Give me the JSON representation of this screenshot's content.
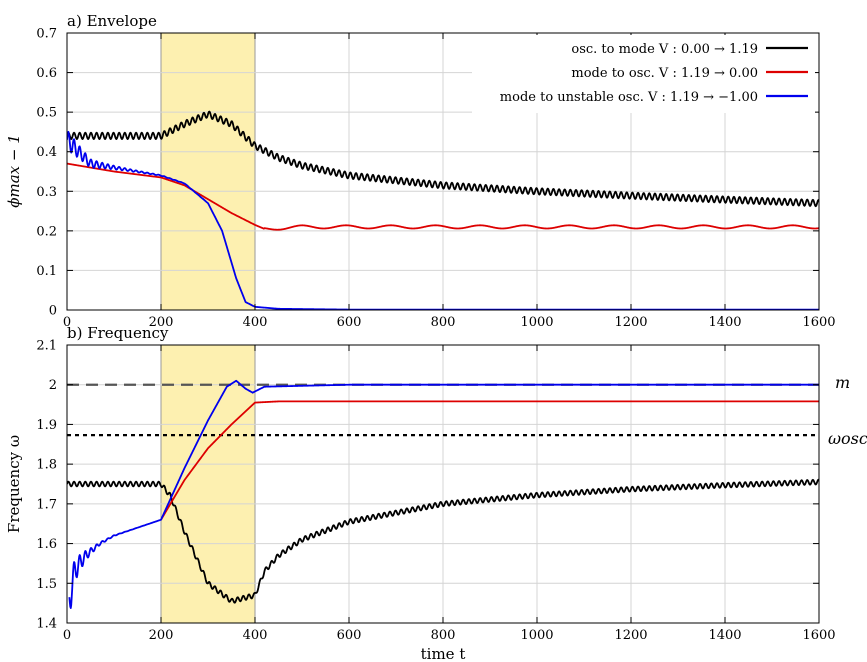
{
  "chart_data": [
    {
      "type": "line",
      "title": "a) Envelope",
      "xlabel": "",
      "ylabel": "ϕmax − 1",
      "xlim": [
        0,
        1600
      ],
      "ylim": [
        0,
        0.7
      ],
      "xticks": [
        "0",
        "200",
        "400",
        "600",
        "800",
        "1000",
        "1200",
        "1400",
        "1600"
      ],
      "yticks": [
        "0",
        "0.1",
        "0.2",
        "0.3",
        "0.4",
        "0.5",
        "0.6",
        "0.7"
      ],
      "grid": true,
      "legend_position": "top-right",
      "highlight_band": {
        "x0": 200,
        "x1": 400,
        "color": "#fdf0b0"
      },
      "series": [
        {
          "name": "osc. to mode V : 0.00 → 1.19",
          "color": "#000000",
          "oscillation": {
            "amplitude": 0.008,
            "period": 12
          },
          "x": [
            0,
            100,
            200,
            250,
            300,
            350,
            400,
            450,
            500,
            600,
            800,
            1000,
            1200,
            1400,
            1600
          ],
          "y": [
            0.44,
            0.44,
            0.44,
            0.47,
            0.495,
            0.47,
            0.415,
            0.385,
            0.365,
            0.34,
            0.315,
            0.3,
            0.289,
            0.279,
            0.27
          ]
        },
        {
          "name": "mode to osc. V : 1.19 → 0.00",
          "color": "#dd0000",
          "oscillation": {
            "amplitude": 0.004,
            "period": 95,
            "from": 420
          },
          "x": [
            0,
            100,
            200,
            250,
            300,
            350,
            400,
            420,
            500,
            800,
            1200,
            1600
          ],
          "y": [
            0.37,
            0.35,
            0.335,
            0.315,
            0.28,
            0.245,
            0.215,
            0.205,
            0.21,
            0.21,
            0.21,
            0.21
          ]
        },
        {
          "name": "mode to unstable osc. V : 1.19 → −1.00",
          "color": "#0000ee",
          "oscillation": {
            "amplitude": 0.025,
            "period": 12,
            "decay": 60
          },
          "x": [
            0,
            50,
            100,
            150,
            200,
            250,
            300,
            330,
            360,
            380,
            400,
            450,
            600,
            1600
          ],
          "y": [
            0.43,
            0.37,
            0.36,
            0.35,
            0.34,
            0.32,
            0.27,
            0.2,
            0.08,
            0.02,
            0.008,
            0.003,
            0.001,
            0.001
          ]
        }
      ]
    },
    {
      "type": "line",
      "title": "b) Frequency",
      "xlabel": "time t",
      "ylabel": "Frequency ω",
      "xlim": [
        0,
        1600
      ],
      "ylim": [
        1.4,
        2.1
      ],
      "xticks": [
        "0",
        "200",
        "400",
        "600",
        "800",
        "1000",
        "1200",
        "1400",
        "1600"
      ],
      "yticks": [
        "1.4",
        "1.5",
        "1.6",
        "1.7",
        "1.8",
        "1.9",
        "2",
        "2.1"
      ],
      "grid": true,
      "highlight_band": {
        "x0": 200,
        "x1": 400,
        "color": "#fdf0b0"
      },
      "reference_lines": [
        {
          "label": "m",
          "y": 2.0,
          "style": "dashed",
          "color": "#555555"
        },
        {
          "label": "ωosc",
          "y": 1.873,
          "style": "dotted",
          "color": "#000000"
        }
      ],
      "series": [
        {
          "name": "osc. to mode V : 0.00 → 1.19",
          "color": "#000000",
          "oscillation": {
            "amplitude": 0.006,
            "period": 12
          },
          "x": [
            0,
            100,
            200,
            220,
            250,
            300,
            350,
            400,
            420,
            450,
            500,
            600,
            800,
            1000,
            1200,
            1400,
            1600
          ],
          "y": [
            1.75,
            1.75,
            1.75,
            1.72,
            1.63,
            1.5,
            1.455,
            1.47,
            1.53,
            1.57,
            1.61,
            1.655,
            1.7,
            1.722,
            1.737,
            1.747,
            1.755
          ]
        },
        {
          "name": "mode to osc. V : 1.19 → 0.00",
          "color": "#dd0000",
          "x": [
            200,
            250,
            300,
            350,
            400,
            450,
            600,
            1000,
            1600
          ],
          "y": [
            1.66,
            1.76,
            1.84,
            1.9,
            1.955,
            1.958,
            1.958,
            1.958,
            1.958
          ]
        },
        {
          "name": "mode to unstable osc. V : 1.19 → −1.00",
          "color": "#0000ee",
          "oscillation": {
            "amplitude": 0.05,
            "period": 12,
            "decay": 25
          },
          "x": [
            5,
            10,
            20,
            40,
            70,
            100,
            150,
            200,
            250,
            300,
            340,
            360,
            380,
            395,
            420,
            600,
            1600
          ],
          "y": [
            1.44,
            1.5,
            1.54,
            1.57,
            1.6,
            1.62,
            1.64,
            1.66,
            1.79,
            1.91,
            1.995,
            2.01,
            1.99,
            1.98,
            1.995,
            2.0,
            2.0
          ]
        }
      ]
    }
  ]
}
